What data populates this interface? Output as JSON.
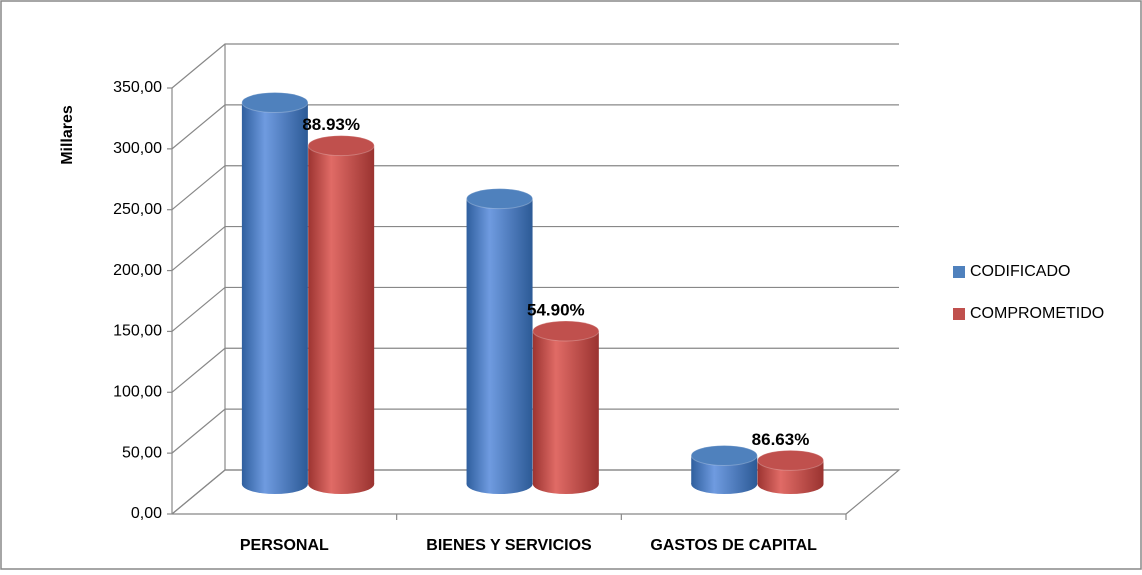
{
  "chart_data": {
    "type": "bar3d",
    "y_axis_label": "Millares",
    "categories": [
      "PERSONAL",
      "BIENES Y SERVICIOS",
      "GASTOS DE CAPITAL"
    ],
    "series": [
      {
        "name": "CODIFICADO",
        "color": "#4f81bd",
        "values": [
          320,
          241,
          30
        ]
      },
      {
        "name": "COMPROMETIDO",
        "color": "#c0504d",
        "values": [
          284.6,
          132.3,
          26
        ]
      }
    ],
    "annotations": [
      "88.93%",
      "54.90%",
      "86.63%"
    ],
    "ylim": [
      0,
      350
    ],
    "yticks": [
      {
        "value": 0,
        "label": "0,00"
      },
      {
        "value": 50,
        "label": "50,00"
      },
      {
        "value": 100,
        "label": "100,00"
      },
      {
        "value": 150,
        "label": "150,00"
      },
      {
        "value": 200,
        "label": "200,00"
      },
      {
        "value": 250,
        "label": "250,00"
      },
      {
        "value": 300,
        "label": "300,00"
      },
      {
        "value": 350,
        "label": "350,00"
      }
    ],
    "grid": true,
    "legend": "right"
  }
}
